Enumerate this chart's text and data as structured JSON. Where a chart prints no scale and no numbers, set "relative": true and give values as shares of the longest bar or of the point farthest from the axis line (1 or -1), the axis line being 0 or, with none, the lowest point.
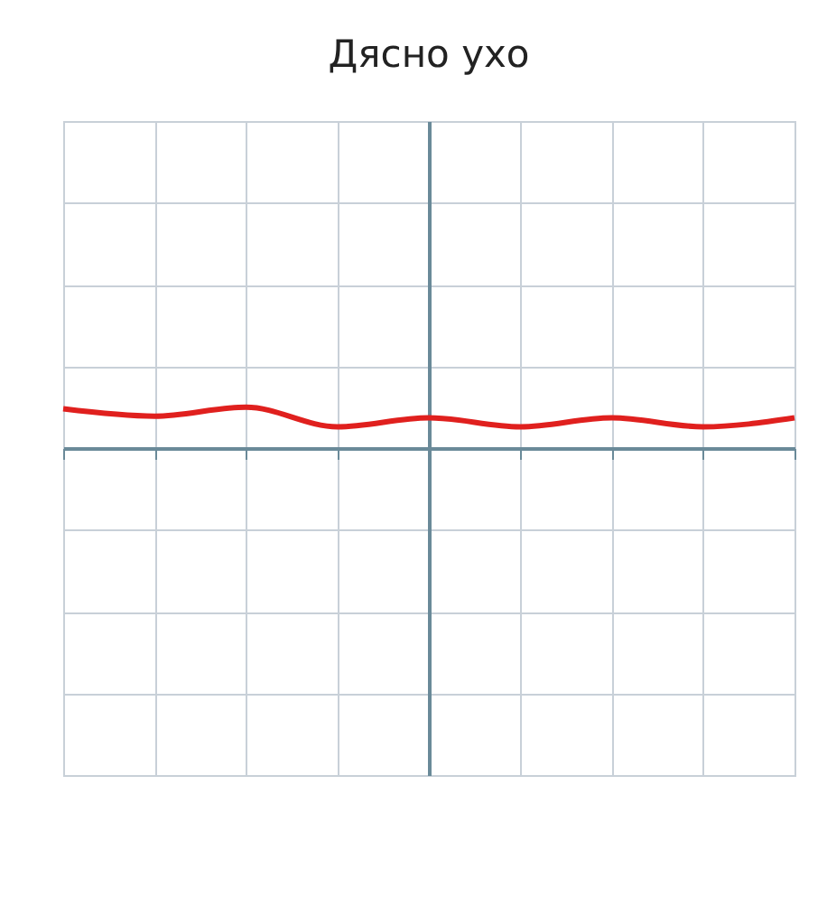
{
  "chart_data": {
    "type": "line",
    "title": "Дясно ухо",
    "relative": true,
    "grid": true,
    "categories": [
      null,
      null,
      null,
      null,
      null,
      null,
      null,
      null,
      null
    ],
    "series": [
      {
        "color": "#e0201e",
        "values": [
          0.96,
          0.78,
          1,
          0.52,
          0.74,
          0.52,
          0.74,
          0.52,
          0.74
        ]
      }
    ]
  }
}
